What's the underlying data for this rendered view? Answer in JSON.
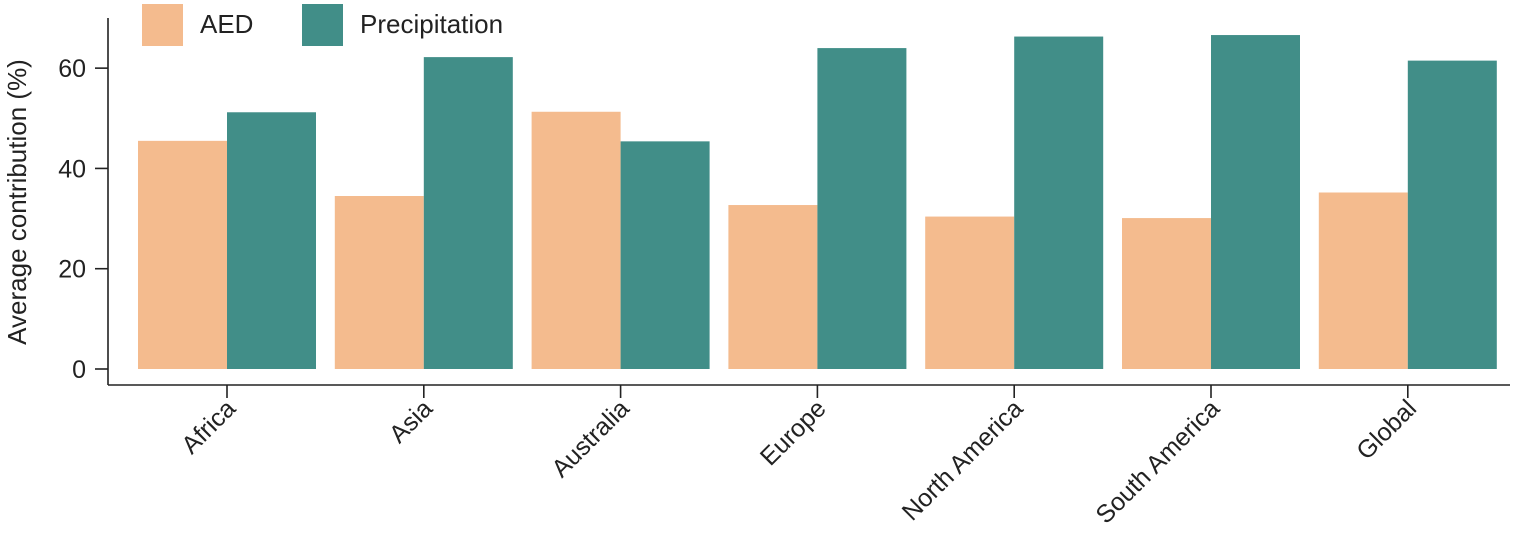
{
  "chart_data": {
    "type": "bar",
    "categories": [
      "Africa",
      "Asia",
      "Australia",
      "Europe",
      "North America",
      "South America",
      "Global"
    ],
    "series": [
      {
        "name": "AED",
        "color": "#f4bb8e",
        "values": [
          45.5,
          34.5,
          51.3,
          32.7,
          30.4,
          30.1,
          35.2
        ]
      },
      {
        "name": "Precipitation",
        "color": "#418e88",
        "values": [
          51.2,
          62.2,
          45.4,
          64.0,
          66.3,
          66.6,
          61.5
        ]
      }
    ],
    "title": "",
    "xlabel": "",
    "ylabel": "Average contribution (%)",
    "ylim": [
      0,
      70
    ],
    "yticks": [
      0,
      20,
      40,
      60
    ],
    "grid": false,
    "legend": "top-left"
  }
}
